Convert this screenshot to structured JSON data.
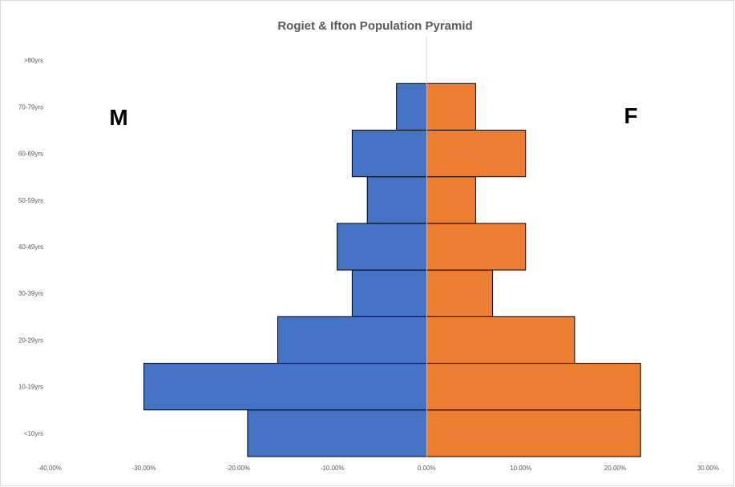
{
  "chart_data": {
    "type": "bar",
    "orientation": "horizontal",
    "title": "Rogiet & Ifton  Population Pyramid",
    "categories": [
      "<10yrs",
      "10-19yrs",
      "20-29yrs",
      "30-39yrs",
      "40-49yrs",
      "50-59yrs",
      "60-69yrs",
      "70-79yrs",
      ">80yrs"
    ],
    "series": [
      {
        "name": "M",
        "color": "#4472c4",
        "values": [
          -19.0,
          -30.0,
          -15.8,
          -7.9,
          -9.5,
          -6.3,
          -7.9,
          -3.2,
          0
        ]
      },
      {
        "name": "F",
        "color": "#ed7d31",
        "values": [
          22.7,
          22.7,
          15.7,
          7.0,
          10.5,
          5.2,
          10.5,
          5.2,
          0
        ]
      }
    ],
    "xlim": [
      -40,
      30
    ],
    "x_ticks": [
      -40,
      -30,
      -20,
      -10,
      0,
      10,
      20,
      30
    ],
    "x_tick_labels": [
      "-40.00%",
      "-30.00%",
      "-20.00%",
      "-10.00%",
      "0.00%",
      "10.00%",
      "20.00%",
      "30.00%"
    ],
    "side_labels": {
      "left": "M",
      "right": "F"
    },
    "grid": false,
    "legend": "none"
  }
}
